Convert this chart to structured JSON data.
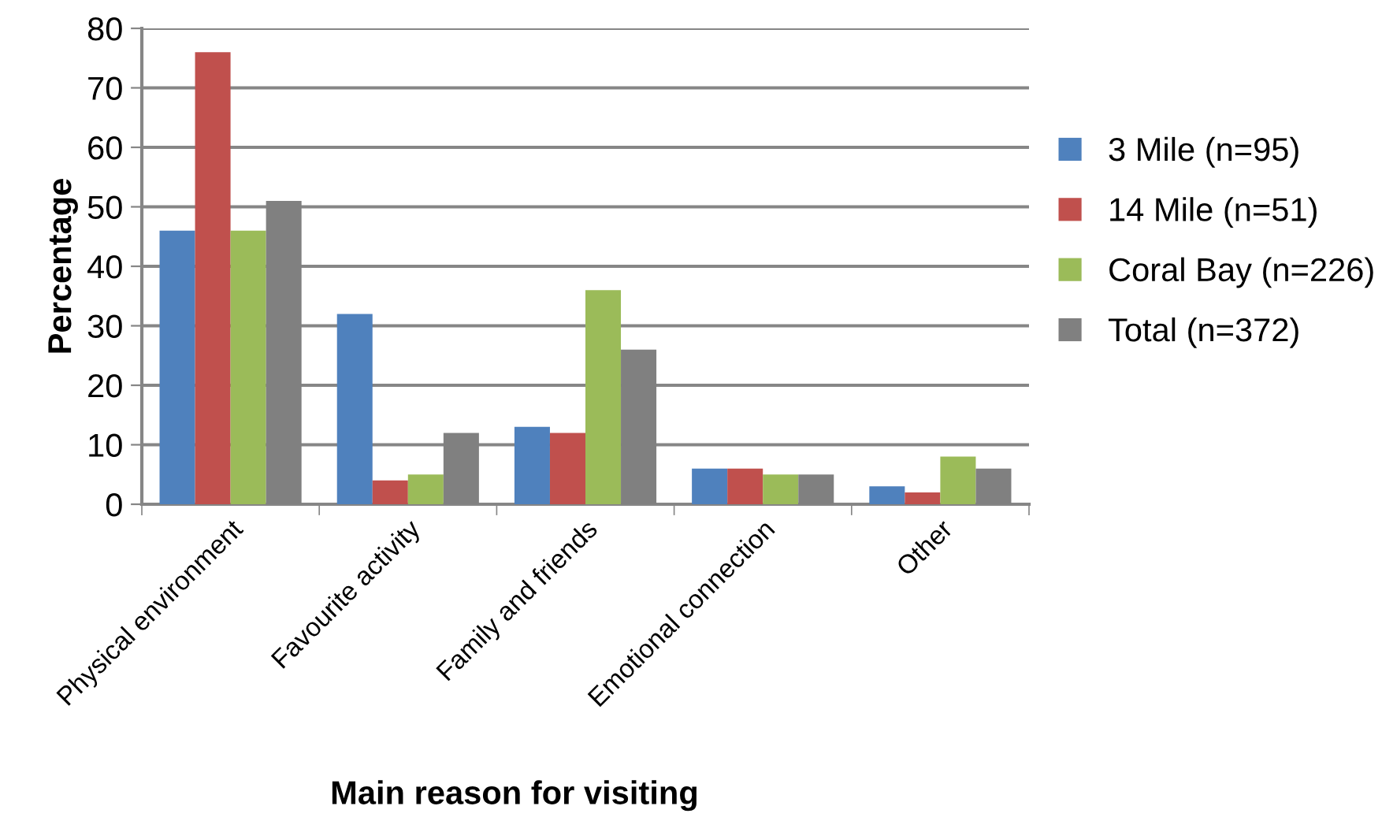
{
  "chart_data": {
    "type": "bar",
    "xlabel": "Main reason for visiting",
    "ylabel": "Percentage",
    "categories": [
      "Physical environment",
      "Favourite activity",
      "Family and friends",
      "Emotional connection",
      "Other"
    ],
    "series": [
      {
        "name": "3 Mile (n=95)",
        "color": "#4f81bd",
        "values": [
          46,
          32,
          13,
          6,
          3
        ]
      },
      {
        "name": "14 Mile (n=51)",
        "color": "#c0504d",
        "values": [
          76,
          4,
          12,
          6,
          2
        ]
      },
      {
        "name": "Coral Bay (n=226)",
        "color": "#9bbb59",
        "values": [
          46,
          5,
          36,
          5,
          8
        ]
      },
      {
        "name": "Total (n=372)",
        "color": "#808080",
        "values": [
          51,
          12,
          26,
          5,
          6
        ]
      }
    ],
    "ylim": [
      0,
      80
    ],
    "yticks": [
      0,
      10,
      20,
      30,
      40,
      50,
      60,
      70,
      80
    ],
    "grid": "y",
    "legend": "right"
  }
}
